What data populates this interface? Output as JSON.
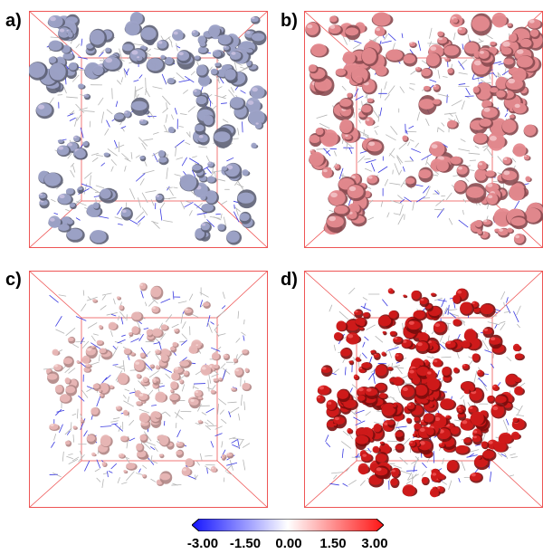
{
  "panels": [
    {
      "label": "a)",
      "surface_color": "#9ea3c8",
      "surface_dark": "#5d6076",
      "accent": "#c9c0e0"
    },
    {
      "label": "b)",
      "surface_color": "#e58a8f",
      "surface_dark": "#8a4a50",
      "accent": "#f3c2c5"
    },
    {
      "label": "c)",
      "surface_color": "#e8b7b6",
      "surface_dark": "#b08584",
      "accent": "#f6d6d4"
    },
    {
      "label": "d)",
      "surface_color": "#d21a1a",
      "surface_dark": "#7a0c0c",
      "accent": "#ef5050"
    }
  ],
  "colorbar": {
    "min": -3.0,
    "max": 3.0,
    "stops": [
      "#1414ff",
      "#ffffff",
      "#ff1414"
    ],
    "ticks": [
      "-3.00",
      "-1.50",
      "0.00",
      "1.50",
      "3.00"
    ]
  },
  "colors": {
    "box_edge": "#ee5555",
    "stick_grey": "#b5b5b5",
    "stick_blue": "#3a3ae0"
  }
}
